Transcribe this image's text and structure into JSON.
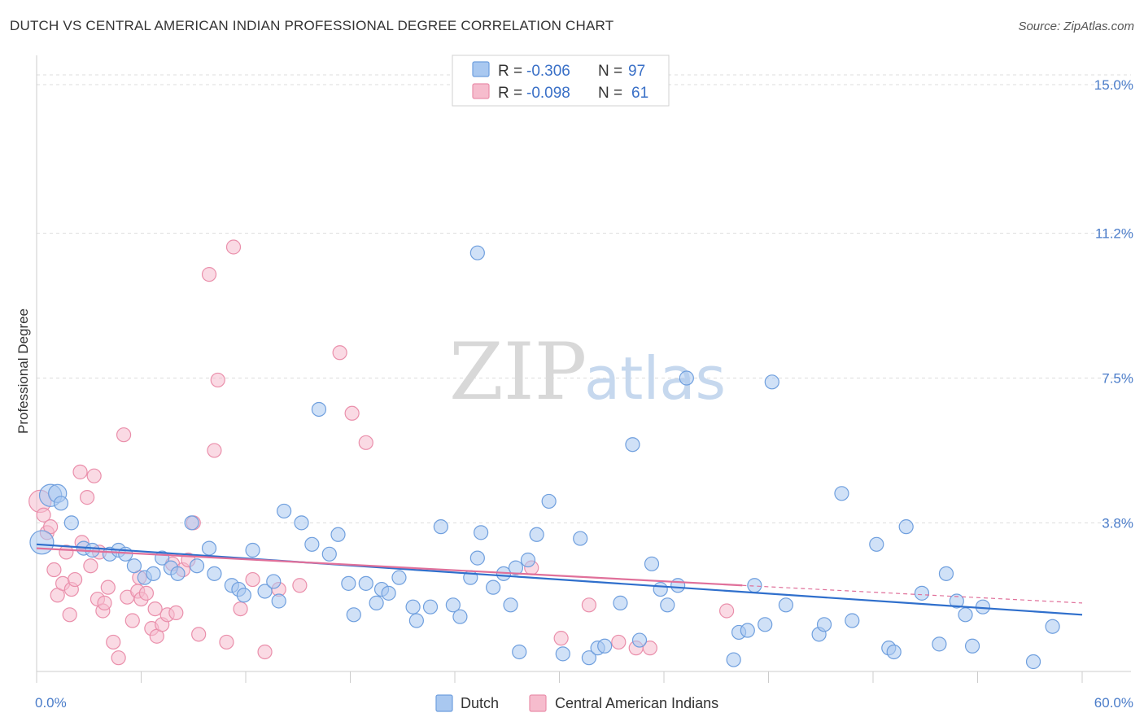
{
  "title": "DUTCH VS CENTRAL AMERICAN INDIAN PROFESSIONAL DEGREE CORRELATION CHART",
  "source": "Source: ZipAtlas.com",
  "watermark": {
    "zip": "ZIP",
    "atlas": "atlas"
  },
  "colors": {
    "dutch_fill": "#a9c8f0",
    "dutch_stroke": "#6f9fde",
    "dutch_line": "#2f6fcc",
    "cai_fill": "#f6bccd",
    "cai_stroke": "#ea8fab",
    "cai_line": "#e0709a",
    "grid": "#dddddd",
    "axis_text": "#4a7cc9"
  },
  "legend": {
    "rows": [
      {
        "r_label": "R = ",
        "r_value": "-0.306",
        "n_label": "N = ",
        "n_value": "97"
      },
      {
        "r_label": "R = ",
        "r_value": "-0.098",
        "n_label": "N = ",
        "n_value": "61"
      }
    ],
    "placement": "top-center"
  },
  "bottom_legend": [
    "Dutch",
    "Central American Indians"
  ],
  "chart_data": {
    "type": "scatter",
    "title": "DUTCH VS CENTRAL AMERICAN INDIAN PROFESSIONAL DEGREE CORRELATION CHART",
    "xlabel": "",
    "ylabel": "Professional Degree",
    "xlim": [
      0,
      60
    ],
    "ylim": [
      0,
      15.5
    ],
    "x_tick_labels": [
      "0.0%",
      "60.0%"
    ],
    "y_ticks": [
      3.8,
      7.5,
      11.2,
      15.0
    ],
    "y_tick_labels": [
      "3.8%",
      "7.5%",
      "11.2%",
      "15.0%"
    ],
    "grid": true,
    "series": [
      {
        "name": "Dutch",
        "trend": {
          "x": [
            0,
            60
          ],
          "y": [
            3.25,
            1.45
          ]
        },
        "points": [
          {
            "x": 0.3,
            "y": 3.3,
            "s": 1.7
          },
          {
            "x": 0.8,
            "y": 4.5,
            "s": 1.6
          },
          {
            "x": 1.2,
            "y": 4.55,
            "s": 1.3
          },
          {
            "x": 1.4,
            "y": 4.3
          },
          {
            "x": 2.0,
            "y": 3.8
          },
          {
            "x": 2.7,
            "y": 3.15
          },
          {
            "x": 3.2,
            "y": 3.1
          },
          {
            "x": 4.2,
            "y": 3.0
          },
          {
            "x": 4.7,
            "y": 3.1
          },
          {
            "x": 5.1,
            "y": 3.0
          },
          {
            "x": 5.6,
            "y": 2.7
          },
          {
            "x": 6.2,
            "y": 2.4
          },
          {
            "x": 6.7,
            "y": 2.5
          },
          {
            "x": 7.2,
            "y": 2.9
          },
          {
            "x": 7.7,
            "y": 2.65
          },
          {
            "x": 8.1,
            "y": 2.5
          },
          {
            "x": 8.9,
            "y": 3.8
          },
          {
            "x": 9.2,
            "y": 2.7
          },
          {
            "x": 9.9,
            "y": 3.15
          },
          {
            "x": 10.2,
            "y": 2.5
          },
          {
            "x": 11.2,
            "y": 2.2
          },
          {
            "x": 11.6,
            "y": 2.1
          },
          {
            "x": 11.9,
            "y": 1.95
          },
          {
            "x": 12.4,
            "y": 3.1
          },
          {
            "x": 13.1,
            "y": 2.05
          },
          {
            "x": 13.6,
            "y": 2.3
          },
          {
            "x": 13.9,
            "y": 1.8
          },
          {
            "x": 14.2,
            "y": 4.1
          },
          {
            "x": 15.2,
            "y": 3.8
          },
          {
            "x": 15.8,
            "y": 3.25
          },
          {
            "x": 16.2,
            "y": 6.7
          },
          {
            "x": 16.8,
            "y": 3.0
          },
          {
            "x": 17.3,
            "y": 3.5
          },
          {
            "x": 17.9,
            "y": 2.25
          },
          {
            "x": 18.2,
            "y": 1.45
          },
          {
            "x": 18.9,
            "y": 2.25
          },
          {
            "x": 19.5,
            "y": 1.75
          },
          {
            "x": 19.8,
            "y": 2.1
          },
          {
            "x": 20.2,
            "y": 2.0
          },
          {
            "x": 20.8,
            "y": 2.4
          },
          {
            "x": 21.6,
            "y": 1.65
          },
          {
            "x": 21.8,
            "y": 1.3
          },
          {
            "x": 22.6,
            "y": 1.65
          },
          {
            "x": 23.2,
            "y": 3.7
          },
          {
            "x": 23.9,
            "y": 1.7
          },
          {
            "x": 24.3,
            "y": 1.4
          },
          {
            "x": 24.9,
            "y": 2.4
          },
          {
            "x": 25.3,
            "y": 2.9
          },
          {
            "x": 25.5,
            "y": 3.55
          },
          {
            "x": 26.2,
            "y": 2.15
          },
          {
            "x": 26.8,
            "y": 2.5
          },
          {
            "x": 27.2,
            "y": 1.7
          },
          {
            "x": 27.7,
            "y": 0.5
          },
          {
            "x": 27.5,
            "y": 2.65
          },
          {
            "x": 28.2,
            "y": 2.85
          },
          {
            "x": 28.7,
            "y": 3.5
          },
          {
            "x": 29.4,
            "y": 4.35
          },
          {
            "x": 30.2,
            "y": 0.45
          },
          {
            "x": 31.2,
            "y": 3.4
          },
          {
            "x": 31.7,
            "y": 0.35
          },
          {
            "x": 32.2,
            "y": 0.6
          },
          {
            "x": 32.6,
            "y": 0.65
          },
          {
            "x": 33.5,
            "y": 1.75
          },
          {
            "x": 34.2,
            "y": 5.8
          },
          {
            "x": 34.6,
            "y": 0.8
          },
          {
            "x": 35.3,
            "y": 2.75
          },
          {
            "x": 35.8,
            "y": 2.1
          },
          {
            "x": 36.2,
            "y": 1.7
          },
          {
            "x": 36.8,
            "y": 2.2
          },
          {
            "x": 37.3,
            "y": 7.5
          },
          {
            "x": 40.0,
            "y": 0.3
          },
          {
            "x": 40.3,
            "y": 1.0
          },
          {
            "x": 40.8,
            "y": 1.05
          },
          {
            "x": 41.2,
            "y": 2.2
          },
          {
            "x": 41.8,
            "y": 1.2
          },
          {
            "x": 43.0,
            "y": 1.7
          },
          {
            "x": 42.2,
            "y": 7.4
          },
          {
            "x": 44.9,
            "y": 0.95
          },
          {
            "x": 45.2,
            "y": 1.2
          },
          {
            "x": 46.2,
            "y": 4.55
          },
          {
            "x": 46.8,
            "y": 1.3
          },
          {
            "x": 48.2,
            "y": 3.25
          },
          {
            "x": 48.9,
            "y": 0.6
          },
          {
            "x": 49.2,
            "y": 0.5
          },
          {
            "x": 49.9,
            "y": 3.7
          },
          {
            "x": 50.8,
            "y": 2.0
          },
          {
            "x": 51.8,
            "y": 0.7
          },
          {
            "x": 52.2,
            "y": 2.5
          },
          {
            "x": 52.8,
            "y": 1.8
          },
          {
            "x": 53.3,
            "y": 1.45
          },
          {
            "x": 53.7,
            "y": 0.65
          },
          {
            "x": 54.3,
            "y": 1.65
          },
          {
            "x": 57.2,
            "y": 0.25
          },
          {
            "x": 58.3,
            "y": 1.15
          },
          {
            "x": 25.3,
            "y": 10.7
          }
        ]
      },
      {
        "name": "Central American Indians",
        "trend": {
          "x": [
            0,
            40.5
          ],
          "y": [
            3.15,
            2.2
          ]
        },
        "trend_dashed": {
          "x": [
            40.5,
            60
          ],
          "y": [
            2.2,
            1.75
          ]
        },
        "points": [
          {
            "x": 0.2,
            "y": 4.35,
            "s": 1.6
          },
          {
            "x": 0.4,
            "y": 4.0
          },
          {
            "x": 0.6,
            "y": 3.55
          },
          {
            "x": 0.8,
            "y": 3.7
          },
          {
            "x": 1.0,
            "y": 2.6
          },
          {
            "x": 1.2,
            "y": 1.95
          },
          {
            "x": 1.5,
            "y": 2.25
          },
          {
            "x": 1.7,
            "y": 3.05
          },
          {
            "x": 2.0,
            "y": 2.1
          },
          {
            "x": 2.2,
            "y": 2.35
          },
          {
            "x": 2.5,
            "y": 5.1
          },
          {
            "x": 2.9,
            "y": 4.45
          },
          {
            "x": 3.1,
            "y": 2.7
          },
          {
            "x": 3.5,
            "y": 1.85
          },
          {
            "x": 3.8,
            "y": 1.55
          },
          {
            "x": 3.3,
            "y": 5.0
          },
          {
            "x": 4.1,
            "y": 2.15
          },
          {
            "x": 3.9,
            "y": 1.75
          },
          {
            "x": 4.4,
            "y": 0.75
          },
          {
            "x": 4.7,
            "y": 0.35
          },
          {
            "x": 5.0,
            "y": 6.05
          },
          {
            "x": 5.2,
            "y": 1.9
          },
          {
            "x": 5.5,
            "y": 1.3
          },
          {
            "x": 5.8,
            "y": 2.05
          },
          {
            "x": 6.0,
            "y": 1.85
          },
          {
            "x": 6.3,
            "y": 2.0
          },
          {
            "x": 6.6,
            "y": 1.1
          },
          {
            "x": 6.9,
            "y": 0.9
          },
          {
            "x": 7.2,
            "y": 1.2
          },
          {
            "x": 7.5,
            "y": 1.45
          },
          {
            "x": 7.8,
            "y": 2.75
          },
          {
            "x": 8.0,
            "y": 1.5
          },
          {
            "x": 8.4,
            "y": 2.6
          },
          {
            "x": 9.0,
            "y": 3.8
          },
          {
            "x": 9.3,
            "y": 0.95
          },
          {
            "x": 9.9,
            "y": 10.15
          },
          {
            "x": 10.2,
            "y": 5.65
          },
          {
            "x": 10.4,
            "y": 7.45
          },
          {
            "x": 10.9,
            "y": 0.75
          },
          {
            "x": 11.3,
            "y": 10.85
          },
          {
            "x": 11.7,
            "y": 1.6
          },
          {
            "x": 12.4,
            "y": 2.35
          },
          {
            "x": 13.1,
            "y": 0.5
          },
          {
            "x": 13.9,
            "y": 2.1
          },
          {
            "x": 15.1,
            "y": 2.2
          },
          {
            "x": 17.4,
            "y": 8.15
          },
          {
            "x": 18.1,
            "y": 6.6
          },
          {
            "x": 18.9,
            "y": 5.85
          },
          {
            "x": 28.4,
            "y": 2.65
          },
          {
            "x": 30.1,
            "y": 0.85
          },
          {
            "x": 31.7,
            "y": 1.7
          },
          {
            "x": 33.4,
            "y": 0.75
          },
          {
            "x": 34.4,
            "y": 0.6
          },
          {
            "x": 35.2,
            "y": 0.6
          },
          {
            "x": 39.6,
            "y": 1.55
          },
          {
            "x": 3.6,
            "y": 3.05
          },
          {
            "x": 2.6,
            "y": 3.3
          },
          {
            "x": 1.9,
            "y": 1.45
          },
          {
            "x": 6.8,
            "y": 1.6
          },
          {
            "x": 8.7,
            "y": 2.85
          },
          {
            "x": 5.9,
            "y": 2.4
          }
        ]
      }
    ]
  }
}
